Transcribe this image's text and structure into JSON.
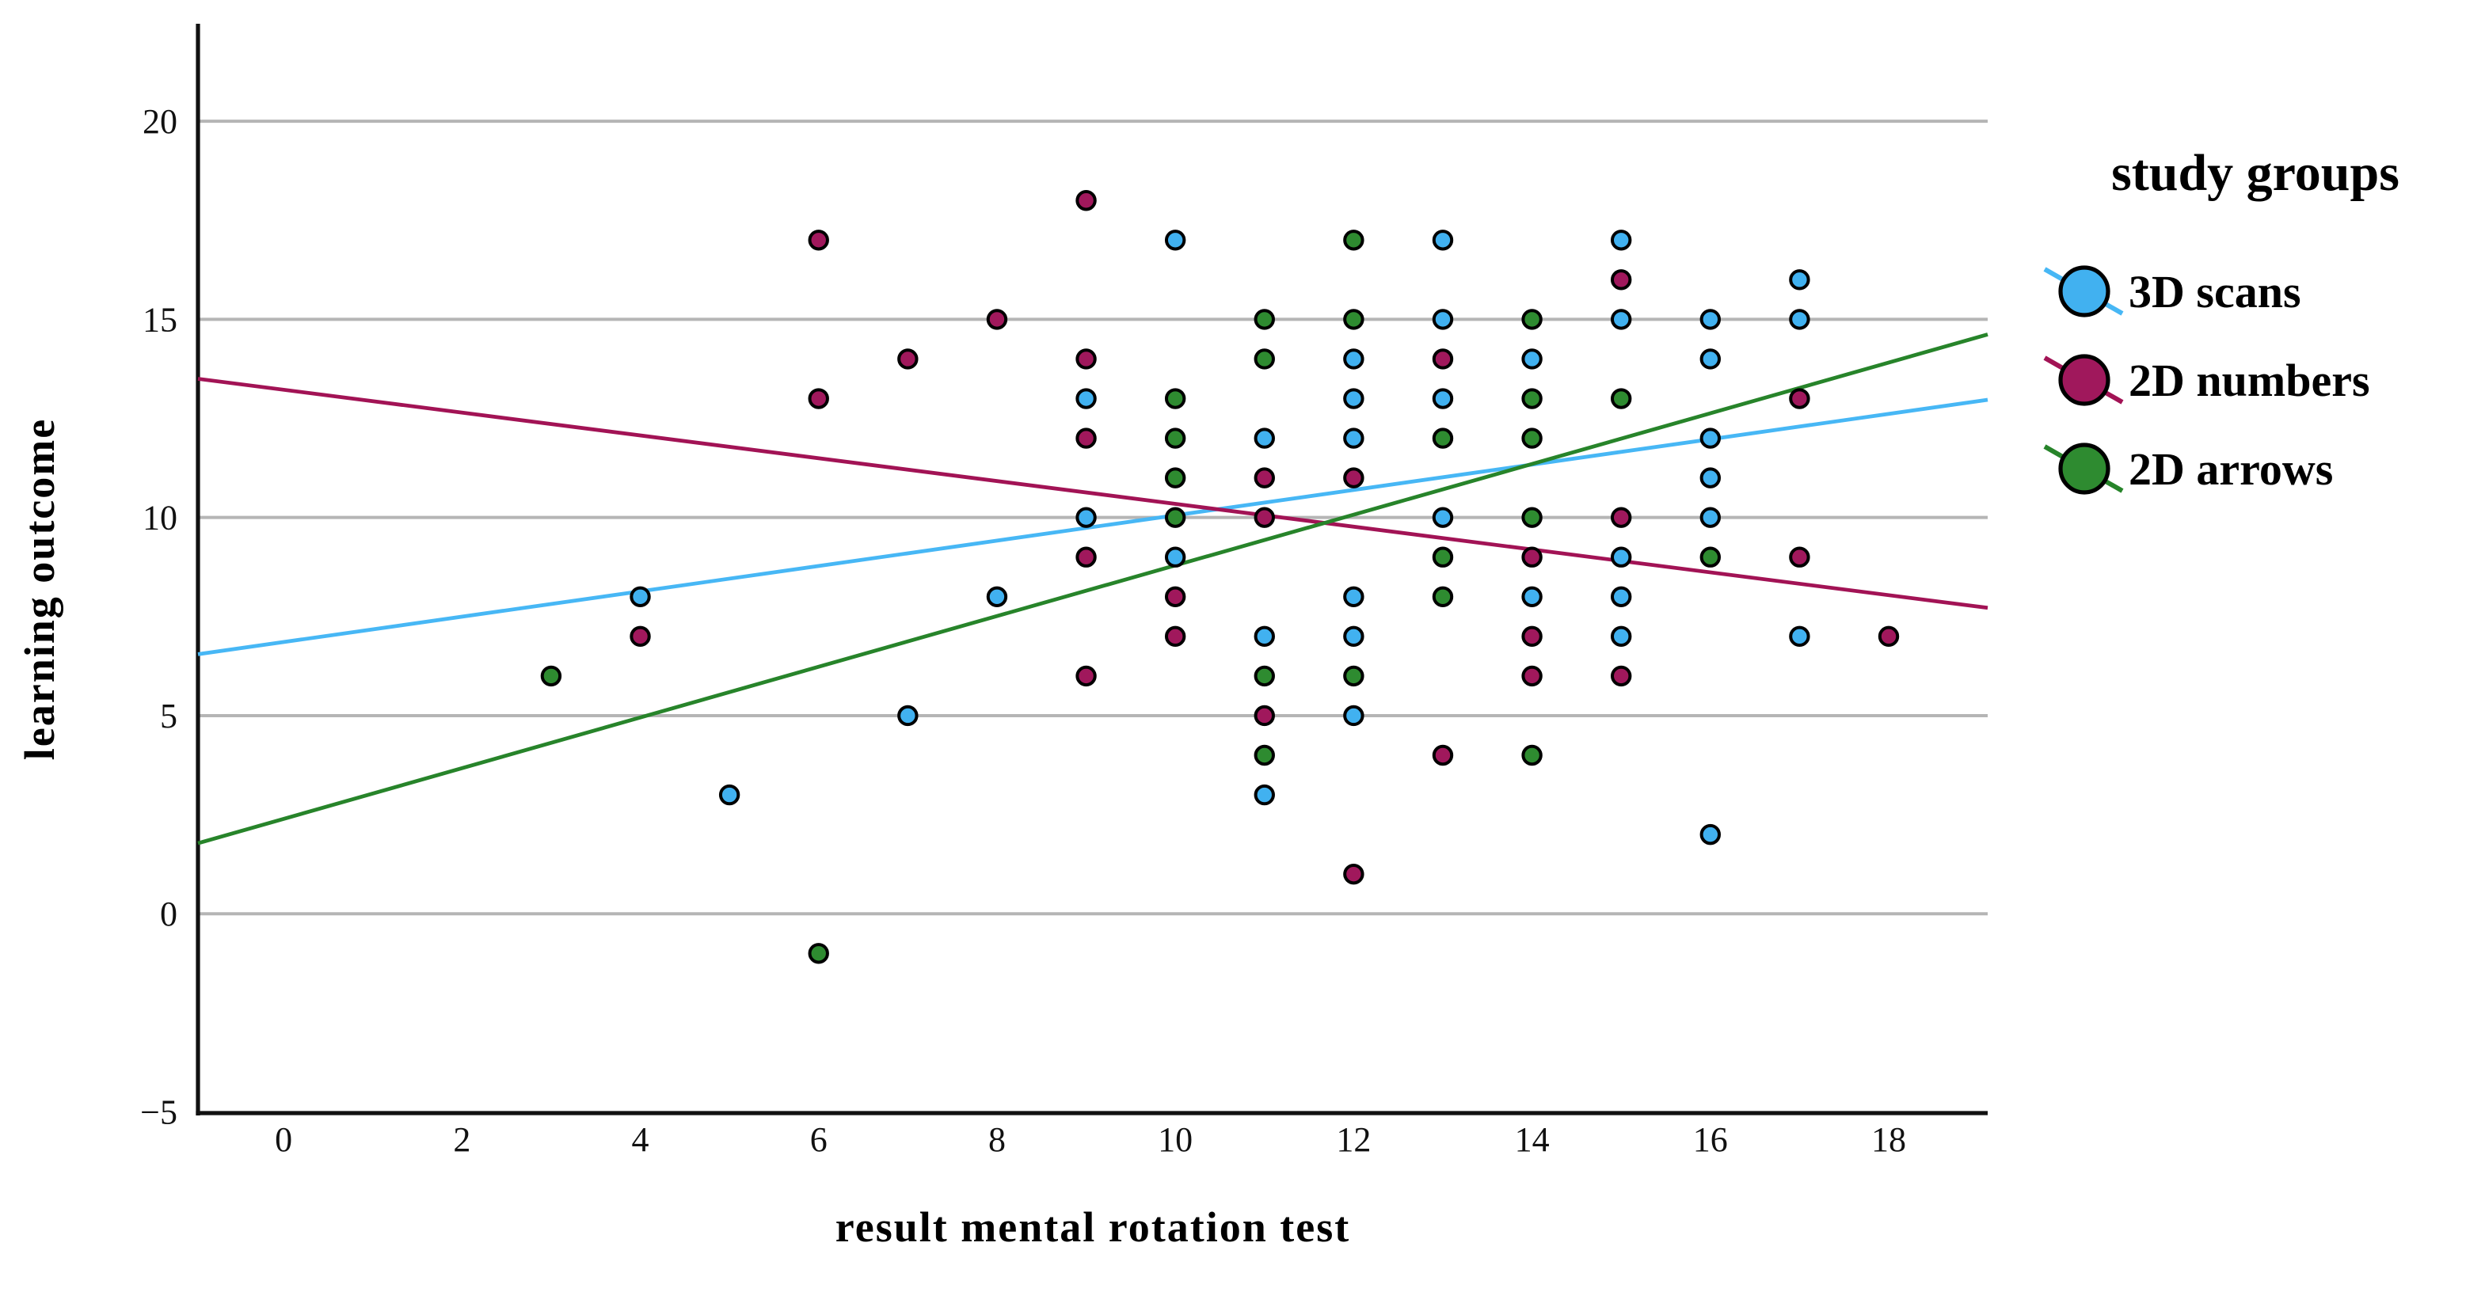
{
  "chart_data": {
    "type": "scatter",
    "title": "",
    "xlabel": "result mental rotation test",
    "ylabel": "learning outcome",
    "legend_title": "study groups",
    "legend_position": "right",
    "background_color": "#ffffff",
    "grid_color": "#b5b5b5",
    "axis_color": "#111111",
    "grid_on": true,
    "xlim": [
      -0.96,
      19.11
    ],
    "ylim": [
      -5.03,
      22.46
    ],
    "x_ticks": [
      0,
      2,
      4,
      6,
      8,
      10,
      12,
      14,
      16,
      18
    ],
    "y_ticks": [
      -5,
      0,
      5,
      10,
      15,
      20
    ],
    "grid_y_values": [
      0,
      5,
      10,
      15,
      20
    ],
    "series": [
      {
        "name": "3D scans",
        "color": "#41b1f0",
        "line_color": "#47b7f5",
        "points": [
          [
            4,
            8
          ],
          [
            5,
            3
          ],
          [
            7,
            5
          ],
          [
            8,
            8
          ],
          [
            9,
            13
          ],
          [
            9,
            10
          ],
          [
            10,
            17
          ],
          [
            10,
            9
          ],
          [
            11,
            12
          ],
          [
            11,
            7
          ],
          [
            11,
            3
          ],
          [
            12,
            14
          ],
          [
            12,
            13
          ],
          [
            12,
            12
          ],
          [
            12,
            8
          ],
          [
            12,
            7
          ],
          [
            12,
            5
          ],
          [
            13,
            17
          ],
          [
            13,
            15
          ],
          [
            13,
            13
          ],
          [
            13,
            10
          ],
          [
            14,
            14
          ],
          [
            14,
            8
          ],
          [
            15,
            17
          ],
          [
            15,
            15
          ],
          [
            15,
            9
          ],
          [
            15,
            8
          ],
          [
            15,
            7
          ],
          [
            16,
            15
          ],
          [
            16,
            14
          ],
          [
            16,
            12
          ],
          [
            16,
            11
          ],
          [
            16,
            10
          ],
          [
            16,
            2
          ],
          [
            17,
            16
          ],
          [
            17,
            15
          ],
          [
            17,
            7
          ]
        ],
        "trend": {
          "x1": -0.96,
          "y1": 6.55,
          "x2": 19.11,
          "y2": 12.97
        }
      },
      {
        "name": "2D numbers",
        "color": "#a0185c",
        "line_color": "#a21355",
        "points": [
          [
            4,
            7
          ],
          [
            6,
            17
          ],
          [
            6,
            13
          ],
          [
            7,
            14
          ],
          [
            8,
            15
          ],
          [
            9,
            18
          ],
          [
            9,
            14
          ],
          [
            9,
            12
          ],
          [
            9,
            9
          ],
          [
            9,
            6
          ],
          [
            10,
            8
          ],
          [
            10,
            7
          ],
          [
            11,
            11
          ],
          [
            11,
            10
          ],
          [
            11,
            5
          ],
          [
            12,
            11
          ],
          [
            12,
            1
          ],
          [
            13,
            14
          ],
          [
            13,
            4
          ],
          [
            14,
            9
          ],
          [
            14,
            7
          ],
          [
            14,
            6
          ],
          [
            15,
            16
          ],
          [
            15,
            10
          ],
          [
            15,
            6
          ],
          [
            17,
            13
          ],
          [
            17,
            9
          ],
          [
            18,
            7
          ]
        ],
        "trend": {
          "x1": -0.96,
          "y1": 13.5,
          "x2": 19.11,
          "y2": 7.72
        }
      },
      {
        "name": "2D arrows",
        "color": "#2e8b30",
        "line_color": "#27842a",
        "points": [
          [
            3,
            6
          ],
          [
            6,
            -1
          ],
          [
            10,
            13
          ],
          [
            10,
            12
          ],
          [
            10,
            11
          ],
          [
            10,
            10
          ],
          [
            11,
            15
          ],
          [
            11,
            14
          ],
          [
            11,
            6
          ],
          [
            11,
            4
          ],
          [
            12,
            17
          ],
          [
            12,
            15
          ],
          [
            12,
            6
          ],
          [
            13,
            12
          ],
          [
            13,
            9
          ],
          [
            13,
            8
          ],
          [
            14,
            15
          ],
          [
            14,
            13
          ],
          [
            14,
            12
          ],
          [
            14,
            10
          ],
          [
            14,
            4
          ],
          [
            15,
            13
          ],
          [
            16,
            9
          ]
        ],
        "trend": {
          "x1": -0.96,
          "y1": 1.78,
          "x2": 19.11,
          "y2": 14.62
        }
      }
    ]
  }
}
